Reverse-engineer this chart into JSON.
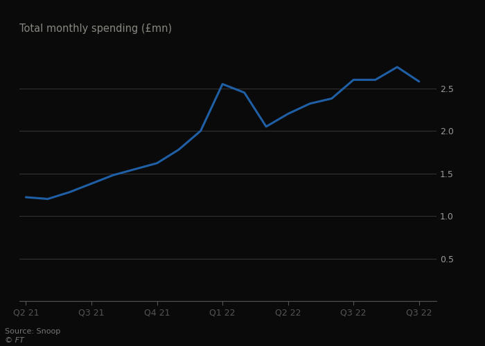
{
  "title": "Total monthly spending (£mn)",
  "source": "Source: Snoop",
  "copyright": "© FT",
  "bg_color": "#0a0a0a",
  "plot_bg_color": "#0a0a0a",
  "line_color": "#1f5fa6",
  "text_color": "#999999",
  "title_color": "#888880",
  "grid_color": "#333333",
  "spine_color": "#555555",
  "x_labels": [
    "Q2 21",
    "Q3 21",
    "Q4 21",
    "Q1 22",
    "Q2 22",
    "Q3 22",
    "Q3 22"
  ],
  "x_tick_positions": [
    0,
    3,
    6,
    9,
    12,
    15,
    18
  ],
  "y_ticks": [
    0,
    0.5,
    1.0,
    1.5,
    2.0,
    2.5
  ],
  "ylim": [
    0,
    3.05
  ],
  "xlim": [
    -0.3,
    18.8
  ],
  "data_x": [
    0,
    1,
    2,
    3,
    4,
    5,
    6,
    7,
    8,
    9,
    10,
    11,
    12,
    13,
    14,
    15,
    16,
    17,
    18
  ],
  "data_y": [
    1.22,
    1.2,
    1.28,
    1.38,
    1.48,
    1.55,
    1.62,
    1.78,
    2.0,
    2.55,
    2.45,
    2.05,
    2.2,
    2.32,
    2.38,
    2.6,
    2.6,
    2.75,
    2.58
  ]
}
